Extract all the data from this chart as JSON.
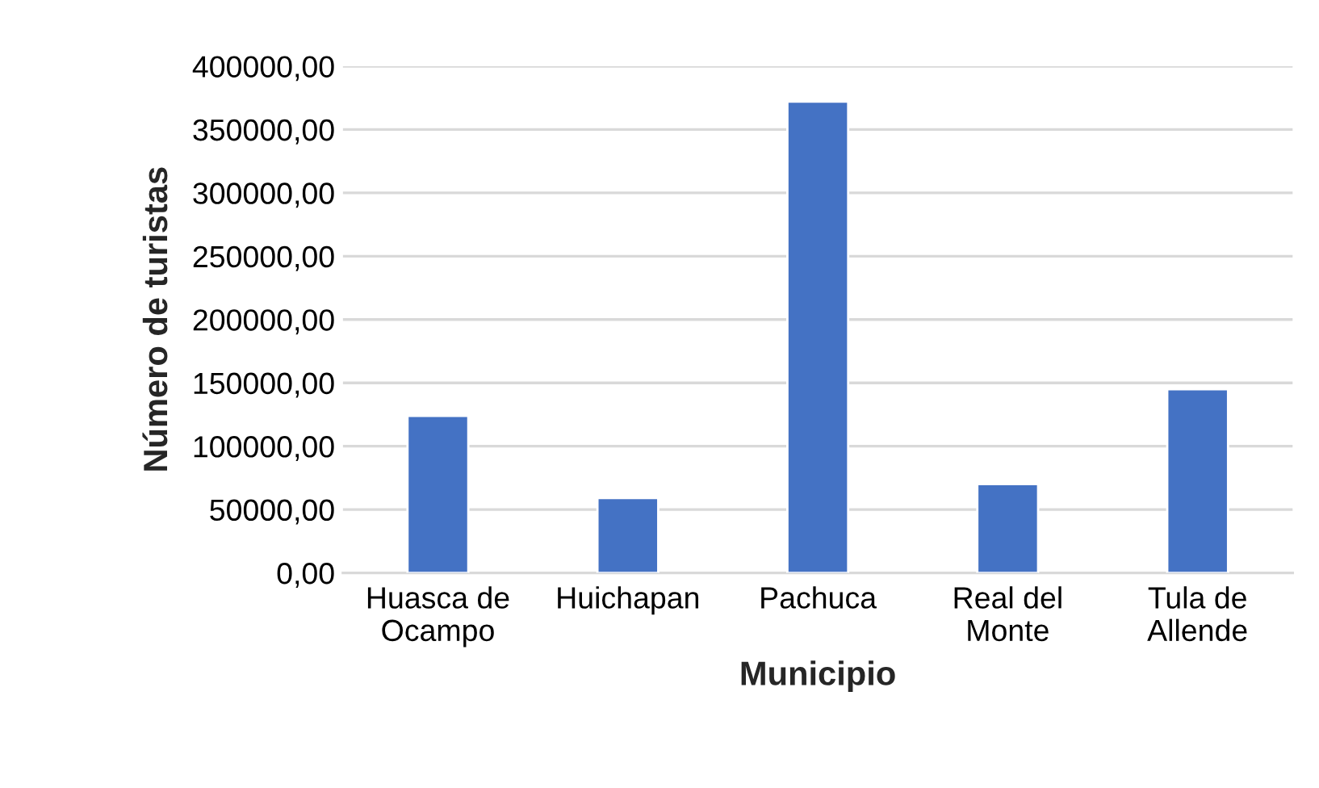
{
  "chart_data": {
    "type": "bar",
    "xlabel": "Municipio",
    "ylabel": "Número de turistas",
    "categories": [
      "Huasca de\nOcampo",
      "Huichapan",
      "Pachuca",
      "Real del\nMonte",
      "Tula de\nAllende"
    ],
    "values": [
      124000,
      59000,
      372000,
      70000,
      145000
    ],
    "color": "#4472c4",
    "ylim": [
      0,
      400000
    ],
    "yticks": [
      {
        "value": 0,
        "label": "0,00"
      },
      {
        "value": 50000,
        "label": "50000,00"
      },
      {
        "value": 100000,
        "label": "100000,00"
      },
      {
        "value": 150000,
        "label": "150000,00"
      },
      {
        "value": 200000,
        "label": "200000,00"
      },
      {
        "value": 250000,
        "label": "250000,00"
      },
      {
        "value": 300000,
        "label": "300000,00"
      },
      {
        "value": 350000,
        "label": "350000,00"
      },
      {
        "value": 400000,
        "label": "400000,00"
      }
    ],
    "grid": "y"
  }
}
